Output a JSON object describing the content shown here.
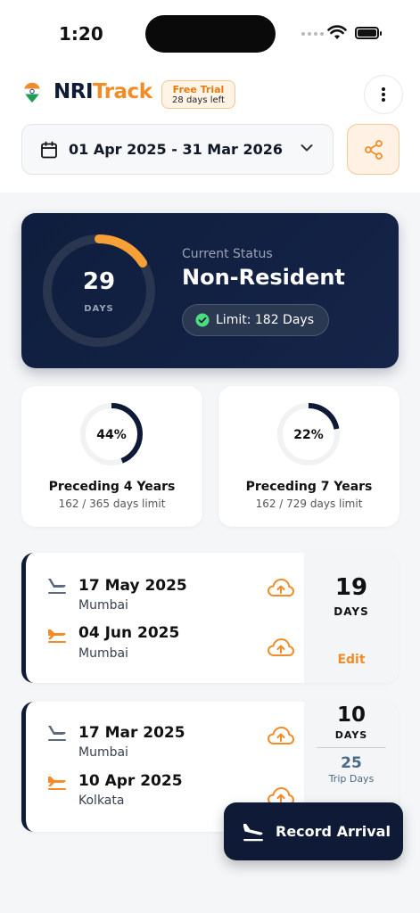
{
  "status_bar": {
    "time": "1:20"
  },
  "header": {
    "brand_part1": "NRI",
    "brand_part2": "Track",
    "trial_title": "Free Trial",
    "trial_days": "28 days left",
    "icons": {
      "menu": "more-vertical-icon",
      "logo": "india-flag-pin-icon"
    }
  },
  "date_filter": {
    "range": "01 Apr 2025 - 31 Mar 2026",
    "icons": [
      "calendar-icon",
      "chevron-down-icon",
      "share-icon"
    ]
  },
  "status_card": {
    "days": "29",
    "days_label": "DAYS",
    "progress_fraction": 0.16,
    "status_label": "Current Status",
    "status_value": "Non-Resident",
    "limit_text": "Limit: 182 Days"
  },
  "preceding": [
    {
      "percent_text": "44%",
      "fraction": 0.44,
      "title": "Preceding 4 Years",
      "sub": "162 / 365 days limit"
    },
    {
      "percent_text": "22%",
      "fraction": 0.22,
      "title": "Preceding 7 Years",
      "sub": "162 / 729 days limit"
    }
  ],
  "trips": [
    {
      "departure_date": "17 May 2025",
      "departure_city": "Mumbai",
      "arrival_date": "04 Jun 2025",
      "arrival_city": "Mumbai",
      "days": "19",
      "days_label": "DAYS",
      "edit_label": "Edit"
    },
    {
      "departure_date": "17 Mar 2025",
      "departure_city": "Mumbai",
      "arrival_date": "10 Apr 2025",
      "arrival_city": "Kolkata",
      "days": "10",
      "days_label": "DAYS",
      "trip_days": "25",
      "trip_days_label": "Trip Days"
    }
  ],
  "fab": {
    "label": "Record Arrival"
  },
  "colors": {
    "navy": "#0f1b36",
    "orange": "#f28c28",
    "background": "#f5f6f8"
  }
}
